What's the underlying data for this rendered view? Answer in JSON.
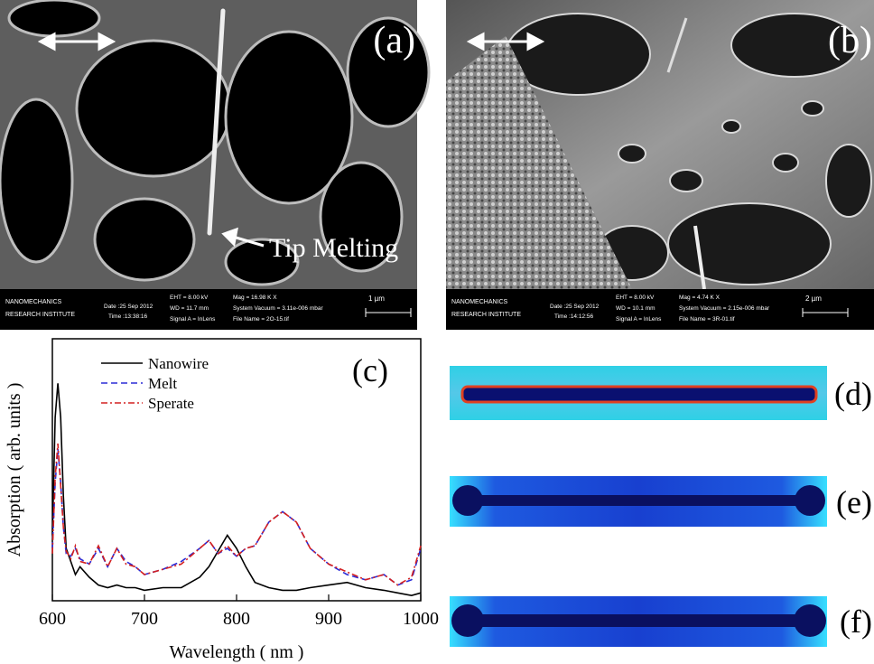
{
  "sem_panels": [
    {
      "label": "(a)",
      "annotation": "Tip Melting",
      "info": {
        "org": [
          "NANOMECHANICS",
          "RESEARCH INSTITUTE"
        ],
        "date": "Date :25 Sep 2012",
        "time": "Time :13:38:16",
        "eht": "EHT = 8.00 kV",
        "wd": "WD = 11.7 mm",
        "signal": "Signal A = InLens",
        "mag": "Mag = 16.98 K X",
        "vacuum": "System Vacuum = 3.11e-006 mbar",
        "file": "File Name = 2O-15.tif",
        "scale": "1 µm"
      }
    },
    {
      "label": "(b)",
      "info": {
        "org": [
          "NANOMECHANICS",
          "RESEARCH INSTITUTE"
        ],
        "date": "Date :25 Sep 2012",
        "time": "Time :14:12:56",
        "eht": "EHT = 8.00 kV",
        "wd": "WD = 10.1 mm",
        "signal": "Signal A = InLens",
        "mag": "Mag = 4.74 K X",
        "vacuum": "System Vacuum = 2.15e-006 mbar",
        "file": "File Name = 3R-01.tif",
        "scale": "2 µm"
      }
    }
  ],
  "chart_data": {
    "type": "line",
    "panel_label": "(c)",
    "xlabel": "Wavelength ( nm )",
    "ylabel": "Absorption ( arb. units )",
    "x": [
      600,
      603,
      606,
      609,
      612,
      615,
      620,
      625,
      630,
      640,
      650,
      660,
      670,
      680,
      690,
      700,
      720,
      740,
      760,
      770,
      780,
      790,
      800,
      810,
      820,
      835,
      850,
      865,
      880,
      900,
      920,
      940,
      960,
      975,
      990,
      1000
    ],
    "series": [
      {
        "name": "Nanowire",
        "color": "#000000",
        "dash": "solid",
        "values": [
          0.25,
          0.7,
          0.83,
          0.7,
          0.4,
          0.2,
          0.15,
          0.1,
          0.13,
          0.09,
          0.06,
          0.05,
          0.06,
          0.05,
          0.05,
          0.04,
          0.05,
          0.05,
          0.09,
          0.13,
          0.19,
          0.25,
          0.2,
          0.13,
          0.07,
          0.05,
          0.04,
          0.04,
          0.05,
          0.06,
          0.07,
          0.05,
          0.04,
          0.03,
          0.02,
          0.03
        ]
      },
      {
        "name": "Melt",
        "color": "#2b2bd6",
        "dash": "dashed",
        "values": [
          0.2,
          0.45,
          0.58,
          0.45,
          0.28,
          0.18,
          0.17,
          0.2,
          0.16,
          0.14,
          0.2,
          0.13,
          0.2,
          0.15,
          0.13,
          0.1,
          0.12,
          0.15,
          0.2,
          0.23,
          0.18,
          0.2,
          0.17,
          0.2,
          0.21,
          0.3,
          0.34,
          0.3,
          0.2,
          0.14,
          0.1,
          0.08,
          0.1,
          0.06,
          0.08,
          0.2
        ]
      },
      {
        "name": "Sperate",
        "color": "#d42020",
        "dash": "dashdot",
        "values": [
          0.18,
          0.47,
          0.6,
          0.44,
          0.28,
          0.19,
          0.16,
          0.21,
          0.15,
          0.14,
          0.21,
          0.13,
          0.2,
          0.14,
          0.13,
          0.1,
          0.12,
          0.14,
          0.2,
          0.23,
          0.18,
          0.21,
          0.17,
          0.2,
          0.21,
          0.3,
          0.34,
          0.3,
          0.2,
          0.14,
          0.11,
          0.08,
          0.1,
          0.06,
          0.09,
          0.21
        ]
      }
    ],
    "xlim": [
      600,
      1000
    ],
    "xticks": [
      600,
      700,
      800,
      900,
      1000
    ],
    "ylim": [
      0,
      1
    ],
    "legend": "upper-left"
  },
  "field_panels": [
    {
      "label": "(d)"
    },
    {
      "label": "(e)"
    },
    {
      "label": "(f)"
    }
  ]
}
